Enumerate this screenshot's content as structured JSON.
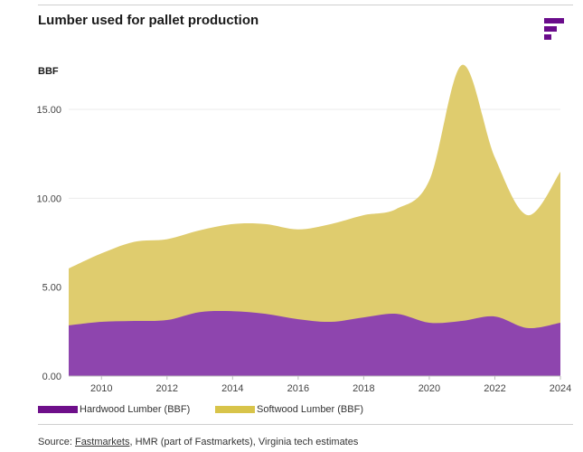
{
  "title": "Lumber used for pallet production",
  "logo_icon": "fastmarkets-logo-icon",
  "colors": {
    "hardwood": "#8e45ae",
    "softwood": "#dfcc6e",
    "legend_hardwood": "#6e0f8a",
    "legend_softwood": "#d8c44a",
    "brand": "#6a0c8b"
  },
  "legend": {
    "hardwood": "Hardwood Lumber (BBF)",
    "softwood": "Softwood Lumber (BBF)"
  },
  "source": {
    "prefix": "Source: ",
    "link": "Fastmarkets",
    "rest": ", HMR (part of Fastmarkets), Virginia tech estimates"
  },
  "chart_data": {
    "type": "area",
    "stacked": true,
    "ylabel": "BBF",
    "ylim": [
      0,
      18
    ],
    "yticks": [
      0,
      5,
      10,
      15
    ],
    "ytick_labels": [
      "0.00",
      "5.00",
      "10.00",
      "15.00"
    ],
    "xlim": [
      2009,
      2024
    ],
    "xticks": [
      2010,
      2012,
      2014,
      2016,
      2018,
      2020,
      2022,
      2024
    ],
    "xtick_labels": [
      "2010",
      "2012",
      "2014",
      "2016",
      "2018",
      "2020",
      "2022",
      "2024"
    ],
    "grid": true,
    "legend_position": "bottom-left",
    "x": [
      2009,
      2010,
      2011,
      2012,
      2013,
      2014,
      2015,
      2016,
      2017,
      2018,
      2019,
      2020,
      2021,
      2022,
      2023,
      2024
    ],
    "series": [
      {
        "name": "Hardwood Lumber (BBF)",
        "values": [
          2.85,
          3.05,
          3.1,
          3.15,
          3.6,
          3.65,
          3.5,
          3.2,
          3.05,
          3.3,
          3.5,
          3.0,
          3.1,
          3.35,
          2.7,
          3.0
        ]
      },
      {
        "name": "Softwood Lumber (BBF)",
        "values": [
          3.2,
          3.85,
          4.45,
          4.55,
          4.6,
          4.9,
          5.05,
          5.05,
          5.5,
          5.75,
          5.9,
          8.0,
          14.4,
          8.95,
          6.35,
          8.5
        ]
      }
    ]
  }
}
